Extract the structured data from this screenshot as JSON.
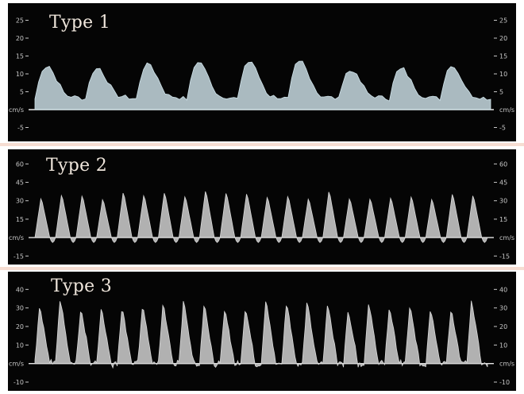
{
  "panels": [
    {
      "title": "Type 1",
      "unit_label": "cm/s",
      "left_ticks": [
        "25",
        "20",
        "15",
        "10",
        "5",
        "-5"
      ],
      "right_ticks": [
        "25",
        "20",
        "15",
        "10",
        "5",
        "-5"
      ],
      "tick_values": [
        25,
        20,
        15,
        10,
        5,
        -5
      ],
      "y_range": [
        -8,
        28
      ],
      "baseline": 0,
      "cycles": 9,
      "peak": 13,
      "floor": 3,
      "waveform": "slow-upstroke"
    },
    {
      "title": "Type 2",
      "unit_label": "cm/s",
      "left_ticks": [
        "60",
        "45",
        "30",
        "15",
        "-15"
      ],
      "right_ticks": [
        "60",
        "45",
        "30",
        "15",
        "-15"
      ],
      "tick_values": [
        60,
        45,
        30,
        15,
        -15
      ],
      "y_range": [
        -20,
        68
      ],
      "baseline": 0,
      "cycles": 22,
      "peak": 38,
      "floor": 0,
      "waveform": "sharp-triangular"
    },
    {
      "title": "Type 3",
      "unit_label": "cm/s",
      "left_ticks": [
        "40",
        "30",
        "20",
        "10",
        "-10"
      ],
      "right_ticks": [
        "40",
        "30",
        "20",
        "10",
        "-10"
      ],
      "tick_values": [
        40,
        30,
        20,
        10,
        -10
      ],
      "y_range": [
        -13,
        47
      ],
      "baseline": 0,
      "cycles": 22,
      "peak": 33,
      "floor": 2,
      "waveform": "spiky-noisy"
    }
  ],
  "colors": {
    "background": "#050505",
    "trace": "#cfe3ea",
    "trace_gray": "#d8d8d8",
    "axis": "#c8c8c8",
    "separator": "#f6ddd2",
    "title": "#efe6dc"
  }
}
